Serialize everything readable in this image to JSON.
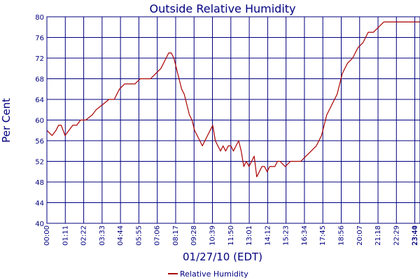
{
  "chart_data": {
    "type": "line",
    "title": "Outside Relative Humidity",
    "xlabel": "01/27/10 (EDT)",
    "ylabel": "Per Cent",
    "ylim": [
      40,
      80
    ],
    "xlim": [
      0,
      1440
    ],
    "y_ticks": [
      "40",
      "44",
      "48",
      "52",
      "56",
      "60",
      "64",
      "68",
      "72",
      "76",
      "80"
    ],
    "x_ticks": [
      "00:00",
      "01:11",
      "02:22",
      "03:33",
      "04:44",
      "05:55",
      "07:06",
      "08:17",
      "09:28",
      "10:39",
      "11:50",
      "13:01",
      "14:12",
      "15:23",
      "16:34",
      "17:45",
      "18:56",
      "20:07",
      "21:18",
      "22:29",
      "23:40",
      "23:44"
    ],
    "grid": true,
    "legend_position": "bottom-center",
    "series": [
      {
        "name": "Relative Humidity",
        "color": "#aa0000",
        "x": [
          0,
          20,
          35,
          45,
          55,
          70,
          85,
          100,
          115,
          130,
          150,
          175,
          190,
          215,
          240,
          260,
          280,
          300,
          320,
          340,
          360,
          380,
          400,
          420,
          440,
          460,
          470,
          480,
          490,
          500,
          505,
          510,
          515,
          520,
          530,
          540,
          550,
          560,
          570,
          580,
          590,
          600,
          610,
          620,
          630,
          640,
          650,
          660,
          670,
          680,
          690,
          700,
          710,
          720,
          730,
          740,
          750,
          760,
          770,
          780,
          790,
          800,
          810,
          820,
          830,
          840,
          850,
          860,
          870,
          880,
          890,
          900,
          920,
          940,
          960,
          980,
          1000,
          1020,
          1040,
          1060,
          1080,
          1100,
          1120,
          1140,
          1160,
          1180,
          1200,
          1220,
          1240,
          1260,
          1280,
          1300,
          1320,
          1340,
          1360,
          1380,
          1400,
          1420,
          1440
        ],
        "values": [
          58,
          57,
          58,
          59,
          59,
          57,
          58,
          59,
          59,
          60,
          60,
          61,
          62,
          63,
          64,
          64,
          66,
          67,
          67,
          67,
          68,
          68,
          68,
          69,
          70,
          72,
          73,
          73,
          72,
          70,
          69,
          68,
          67,
          66,
          65,
          63,
          61,
          60,
          58,
          57,
          56,
          55,
          56,
          57,
          58,
          59,
          56,
          55,
          54,
          55,
          54,
          55,
          55,
          54,
          55,
          56,
          54,
          51,
          52,
          51,
          52,
          53,
          49,
          50,
          51,
          51,
          50,
          51,
          51,
          51,
          52,
          52,
          51,
          52,
          52,
          52,
          53,
          54,
          55,
          57,
          61,
          63,
          65,
          69,
          71,
          72,
          74,
          75,
          77,
          77,
          78,
          79,
          79,
          79,
          79,
          79,
          79,
          79,
          79
        ]
      }
    ]
  }
}
